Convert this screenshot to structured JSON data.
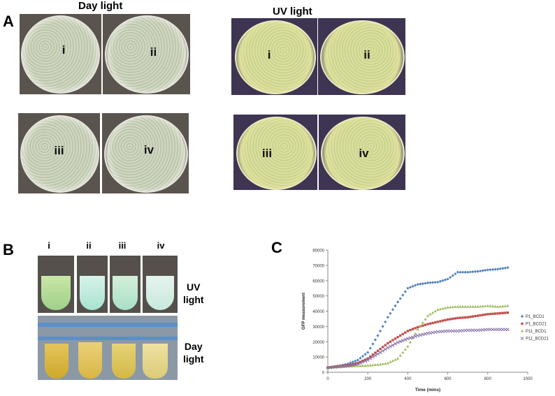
{
  "panel_a": {
    "letter": "A",
    "day_heading": "Day light",
    "uv_heading": "UV light",
    "day_plates": [
      "i",
      "ii",
      "iii",
      "iv"
    ],
    "uv_plates": [
      "i",
      "ii",
      "iii",
      "iv"
    ]
  },
  "panel_b": {
    "letter": "B",
    "tubes": [
      "i",
      "ii",
      "iii",
      "iv"
    ],
    "uv_label_1": "UV",
    "uv_label_2": "light",
    "day_label_1": "Day",
    "day_label_2": "light"
  },
  "panel_c": {
    "letter": "C"
  },
  "chart_data": {
    "type": "scatter",
    "xlabel": "Time (mins)",
    "ylabel": "GFP measurement",
    "xlim": [
      0,
      1000
    ],
    "ylim": [
      0,
      80000
    ],
    "x_ticks": [
      "0",
      "200",
      "400",
      "600",
      "800",
      "1000"
    ],
    "y_ticks": [
      "0",
      "10000",
      "20000",
      "30000",
      "40000",
      "50000",
      "60000",
      "70000",
      "80000"
    ],
    "grid": false,
    "legend": "right",
    "series": [
      {
        "name": "P1_BCD1",
        "color": "#4f81bd",
        "marker": "diamond",
        "x": [
          0,
          50,
          100,
          150,
          200,
          250,
          300,
          350,
          400,
          450,
          500,
          550,
          600,
          650,
          700,
          750,
          800,
          850,
          900
        ],
        "y": [
          3000,
          4000,
          5500,
          8000,
          13000,
          24000,
          36000,
          46000,
          55000,
          57500,
          58500,
          59000,
          61000,
          65500,
          65500,
          66000,
          67000,
          67500,
          68500
        ]
      },
      {
        "name": "P1_BCD21",
        "color": "#c0504d",
        "marker": "square",
        "x": [
          0,
          50,
          100,
          150,
          200,
          250,
          300,
          350,
          400,
          450,
          500,
          550,
          600,
          650,
          700,
          750,
          800,
          850,
          900
        ],
        "y": [
          3000,
          4000,
          4500,
          6000,
          9000,
          14000,
          19000,
          23000,
          27000,
          29500,
          31500,
          33000,
          34500,
          35500,
          36000,
          37000,
          38000,
          38500,
          39000
        ]
      },
      {
        "name": "P11_BCD1",
        "color": "#9bbb59",
        "marker": "triangle",
        "x": [
          0,
          50,
          100,
          150,
          200,
          250,
          300,
          350,
          400,
          450,
          500,
          550,
          600,
          650,
          700,
          750,
          800,
          850,
          900
        ],
        "y": [
          3000,
          3500,
          4000,
          4200,
          4500,
          5000,
          6000,
          9000,
          17000,
          28000,
          37000,
          41000,
          42500,
          43000,
          43000,
          43000,
          43500,
          43000,
          43500
        ]
      },
      {
        "name": "P11_BCD21",
        "color": "#8064a2",
        "marker": "x",
        "x": [
          0,
          50,
          100,
          150,
          200,
          250,
          300,
          350,
          400,
          450,
          500,
          550,
          600,
          650,
          700,
          750,
          800,
          850,
          900
        ],
        "y": [
          3000,
          3500,
          4000,
          5500,
          8000,
          12000,
          16000,
          19500,
          22000,
          24000,
          25500,
          26500,
          27000,
          27000,
          27500,
          27500,
          28000,
          28000,
          28000
        ]
      }
    ]
  }
}
